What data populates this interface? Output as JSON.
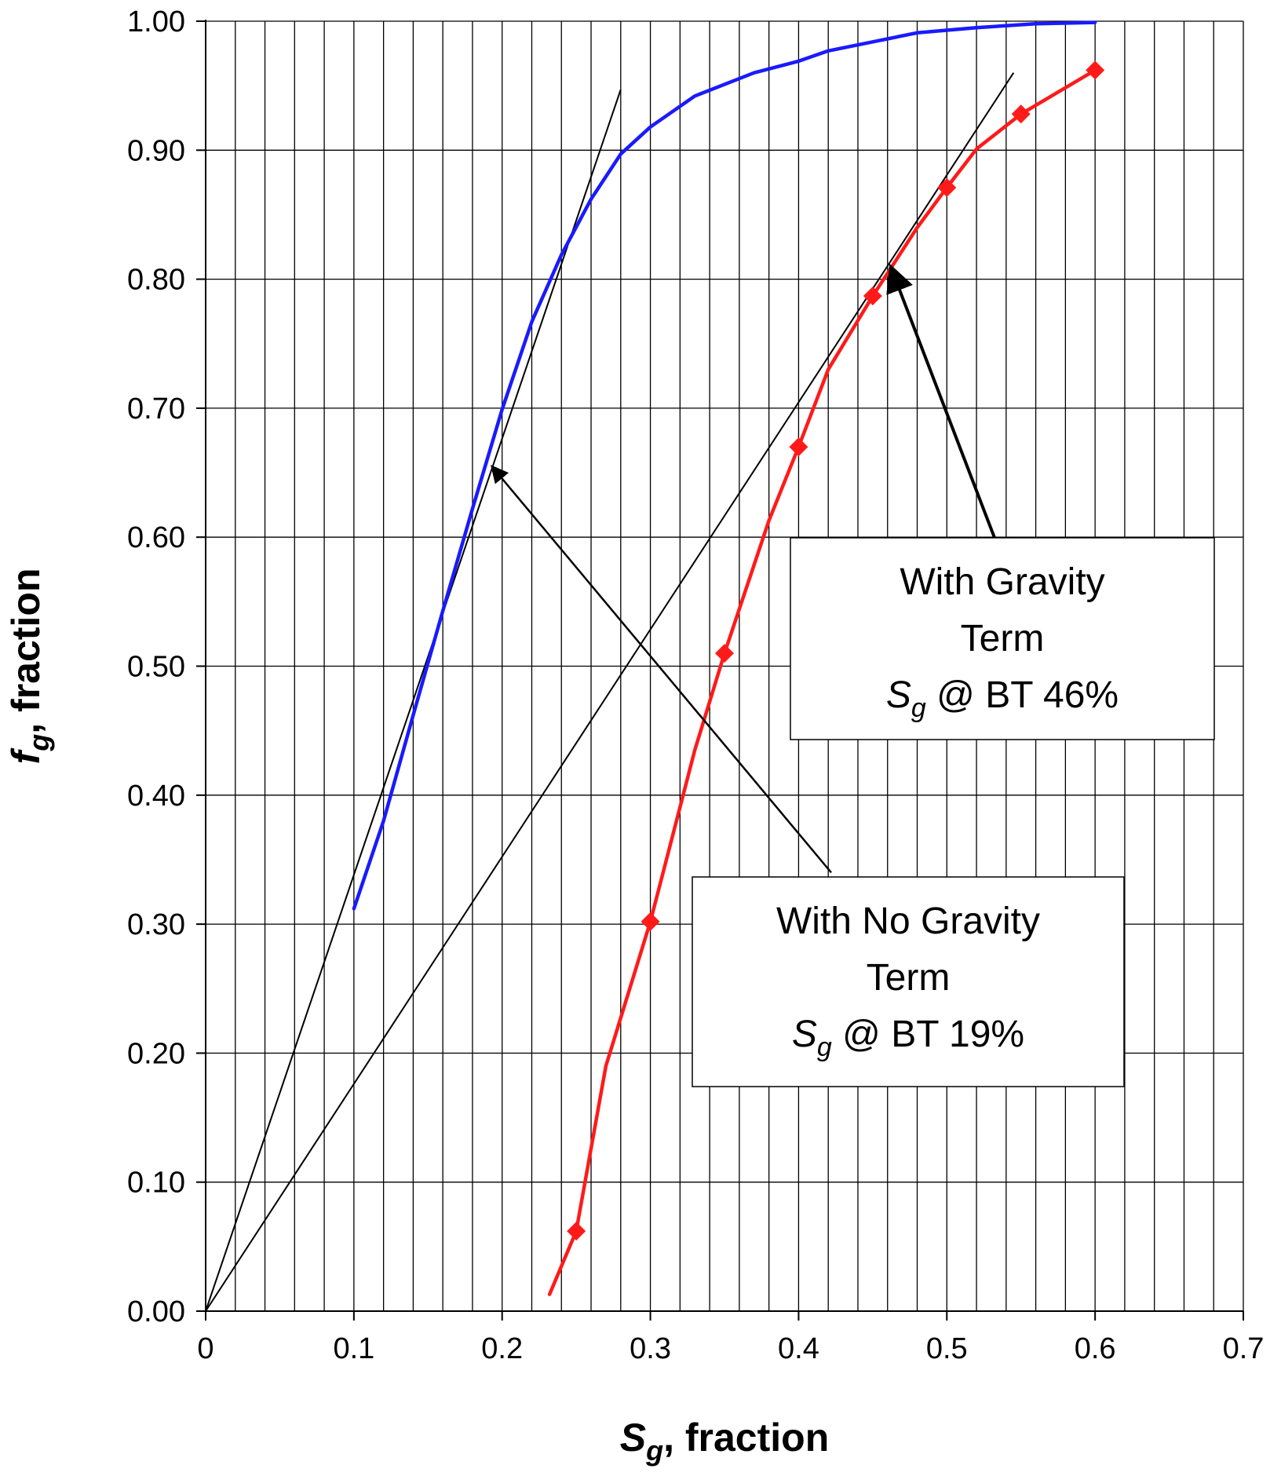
{
  "chart_data": {
    "type": "line",
    "title": "",
    "xlabel": {
      "main": "S",
      "sub": "g",
      "rest": ", fraction"
    },
    "ylabel": {
      "main": "f",
      "sub": "g",
      "rest": ", fraction"
    },
    "xlim": [
      0,
      0.7
    ],
    "ylim": [
      0,
      1.0
    ],
    "x_minor_step": 0.02,
    "x_ticks": [
      {
        "value": 0,
        "label": "0"
      },
      {
        "value": 0.1,
        "label": "0.1"
      },
      {
        "value": 0.2,
        "label": "0.2"
      },
      {
        "value": 0.3,
        "label": "0.3"
      },
      {
        "value": 0.4,
        "label": "0.4"
      },
      {
        "value": 0.5,
        "label": "0.5"
      },
      {
        "value": 0.6,
        "label": "0.6"
      },
      {
        "value": 0.7,
        "label": "0.7"
      }
    ],
    "y_ticks": [
      {
        "value": 0,
        "label": "0.00"
      },
      {
        "value": 0.1,
        "label": "0.10"
      },
      {
        "value": 0.2,
        "label": "0.20"
      },
      {
        "value": 0.3,
        "label": "0.30"
      },
      {
        "value": 0.4,
        "label": "0.40"
      },
      {
        "value": 0.5,
        "label": "0.50"
      },
      {
        "value": 0.6,
        "label": "0.60"
      },
      {
        "value": 0.7,
        "label": "0.70"
      },
      {
        "value": 0.8,
        "label": "0.80"
      },
      {
        "value": 0.9,
        "label": "0.90"
      },
      {
        "value": 1.0,
        "label": "1.00"
      }
    ],
    "grid": true,
    "series": [
      {
        "color": "#1a1aff",
        "markers": false,
        "points": [
          [
            0.1,
            0.312
          ],
          [
            0.12,
            0.38
          ],
          [
            0.14,
            0.462
          ],
          [
            0.16,
            0.543
          ],
          [
            0.18,
            0.622
          ],
          [
            0.2,
            0.699
          ],
          [
            0.22,
            0.767
          ],
          [
            0.24,
            0.819
          ],
          [
            0.26,
            0.862
          ],
          [
            0.28,
            0.897
          ],
          [
            0.3,
            0.918
          ],
          [
            0.33,
            0.942
          ],
          [
            0.37,
            0.96
          ],
          [
            0.4,
            0.969
          ],
          [
            0.42,
            0.977
          ],
          [
            0.45,
            0.984
          ],
          [
            0.48,
            0.991
          ],
          [
            0.52,
            0.995
          ],
          [
            0.56,
            0.998
          ],
          [
            0.6,
            0.999
          ]
        ]
      },
      {
        "color": "#ff1a1a",
        "markers": false,
        "points": [
          [
            0.232,
            0.013
          ],
          [
            0.25,
            0.062
          ],
          [
            0.27,
            0.19
          ],
          [
            0.3,
            0.302
          ],
          [
            0.33,
            0.435
          ],
          [
            0.35,
            0.51
          ],
          [
            0.38,
            0.613
          ],
          [
            0.4,
            0.67
          ],
          [
            0.42,
            0.73
          ],
          [
            0.45,
            0.787
          ],
          [
            0.48,
            0.84
          ],
          [
            0.5,
            0.871
          ],
          [
            0.52,
            0.901
          ],
          [
            0.55,
            0.928
          ],
          [
            0.6,
            0.962
          ]
        ]
      },
      {
        "color": "#ff1a1a",
        "markers": true,
        "marker": "diamond",
        "points": [
          [
            0.25,
            0.062
          ],
          [
            0.3,
            0.302
          ],
          [
            0.35,
            0.51
          ],
          [
            0.4,
            0.67
          ],
          [
            0.45,
            0.787
          ],
          [
            0.5,
            0.871
          ],
          [
            0.55,
            0.928
          ],
          [
            0.6,
            0.962
          ]
        ]
      }
    ],
    "tangent_lines": [
      {
        "from": [
          0,
          0
        ],
        "to": [
          0.28,
          0.947
        ]
      },
      {
        "from": [
          0,
          0
        ],
        "to": [
          0.545,
          0.96
        ]
      }
    ],
    "annotations": [
      {
        "lines": [
          "With Gravity",
          "Term",
          "@ BT 46%"
        ],
        "sat_main": "S",
        "sat_sub": "g",
        "arrow_from": [
          0.532,
          0.6
        ],
        "arrow_to": [
          0.462,
          0.81
        ]
      },
      {
        "lines": [
          "With No Gravity",
          "Term",
          "@ BT 19%"
        ],
        "sat_main": "S",
        "sat_sub": "g",
        "arrow_from": [
          0.422,
          0.34
        ],
        "arrow_to": [
          0.193,
          0.655
        ]
      }
    ]
  }
}
